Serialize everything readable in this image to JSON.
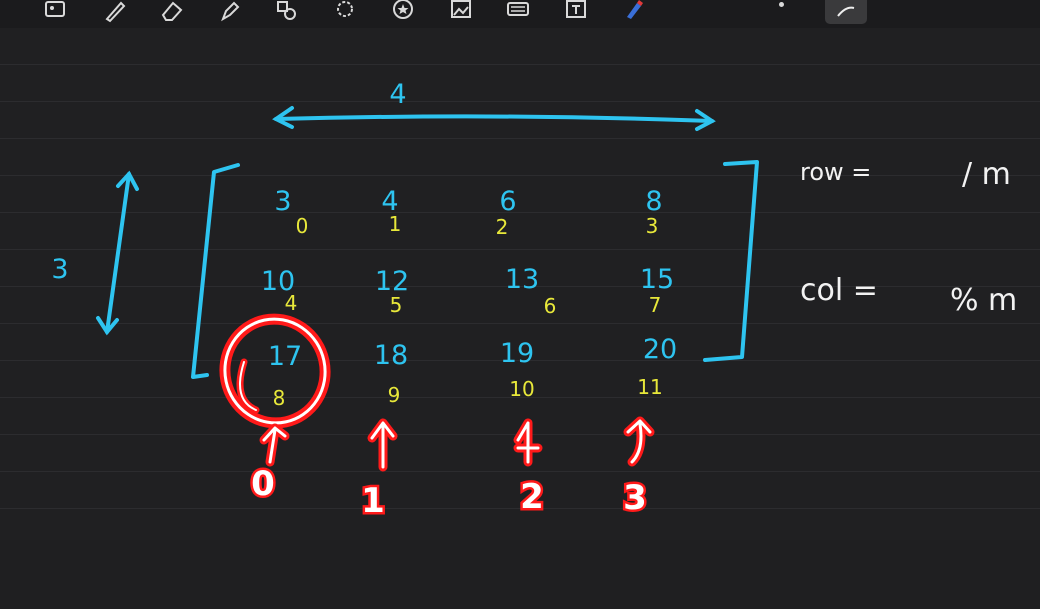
{
  "toolbar": {
    "tools": [
      {
        "name": "image-insert-icon",
        "kind": "image"
      },
      {
        "name": "pen-tool-icon",
        "kind": "pen"
      },
      {
        "name": "eraser-tool-icon",
        "kind": "eraser"
      },
      {
        "name": "highlighter-tool-icon",
        "kind": "highlighter"
      },
      {
        "name": "shapes-tool-icon",
        "kind": "shapes"
      },
      {
        "name": "lasso-tool-icon",
        "kind": "lasso"
      },
      {
        "name": "sticker-tool-icon",
        "kind": "sticker"
      },
      {
        "name": "photo-tool-icon",
        "kind": "photo"
      },
      {
        "name": "keyboard-tool-icon",
        "kind": "keyboard"
      },
      {
        "name": "text-box-tool-icon",
        "kind": "text"
      },
      {
        "name": "laser-pointer-tool-icon",
        "kind": "laser"
      }
    ],
    "more_icon": "more-dots-icon",
    "toggle_icon": "drawing-mode-icon"
  },
  "colors": {
    "blue_ink": "#2ec4f0",
    "yellow_ink": "#e8e83a",
    "white_ink": "#f2f2f2",
    "red_ink": "#ff1a1a"
  },
  "whiteboard": {
    "width_label": "4",
    "height_label": "3",
    "matrix_values": [
      [
        "3",
        "4",
        "6",
        "8"
      ],
      [
        "10",
        "12",
        "13",
        "15"
      ],
      [
        "17",
        "18",
        "19",
        "20"
      ]
    ],
    "flat_indices": [
      [
        "0",
        "1",
        "2",
        "3"
      ],
      [
        "4",
        "5",
        "6",
        "7"
      ],
      [
        "8",
        "9",
        "10",
        "11"
      ]
    ],
    "column_numbers": [
      "0",
      "1",
      "2",
      "3"
    ],
    "row_formula": "row =",
    "row_formula_op": "/ m",
    "col_formula": "col =",
    "col_formula_op": "% m"
  }
}
